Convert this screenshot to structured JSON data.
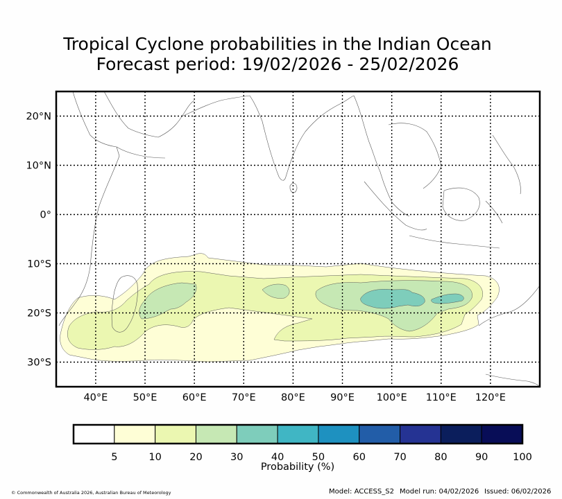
{
  "title": {
    "line1": "Tropical Cyclone probabilities in the Indian Ocean",
    "line2": "Forecast period: 19/02/2026 - 25/02/2026"
  },
  "map": {
    "lon_range": [
      32,
      130
    ],
    "lat_range": [
      -35,
      25
    ],
    "lon_ticks": [
      {
        "value": 40,
        "label": "40°E"
      },
      {
        "value": 50,
        "label": "50°E"
      },
      {
        "value": 60,
        "label": "60°E"
      },
      {
        "value": 70,
        "label": "70°E"
      },
      {
        "value": 80,
        "label": "80°E"
      },
      {
        "value": 90,
        "label": "90°E"
      },
      {
        "value": 100,
        "label": "100°E"
      },
      {
        "value": 110,
        "label": "110°E"
      },
      {
        "value": 120,
        "label": "120°E"
      }
    ],
    "lat_ticks": [
      {
        "value": 20,
        "label": "20°N"
      },
      {
        "value": 10,
        "label": "10°N"
      },
      {
        "value": 0,
        "label": "0°"
      },
      {
        "value": -10,
        "label": "10°S"
      },
      {
        "value": -20,
        "label": "20°S"
      },
      {
        "value": -30,
        "label": "30°S"
      }
    ]
  },
  "colorbar": {
    "label": "Probability (%)",
    "colors": [
      "#ffffff",
      "#fefed6",
      "#ebf7b1",
      "#c6e8b4",
      "#7ecdbb",
      "#40b6c4",
      "#1e91c0",
      "#225da8",
      "#253393",
      "#0b1e5c",
      "#080d57"
    ],
    "tick_labels": [
      "5",
      "10",
      "20",
      "30",
      "40",
      "50",
      "60",
      "70",
      "80",
      "90",
      "100"
    ]
  },
  "footer": {
    "copyright": "© Commonwealth of Australia 2026, Australian Bureau of Meteorology",
    "model": "Model: ACCESS_S2",
    "model_run": "Model run: 04/02/2026",
    "issued": "Issued: 06/02/2026"
  }
}
